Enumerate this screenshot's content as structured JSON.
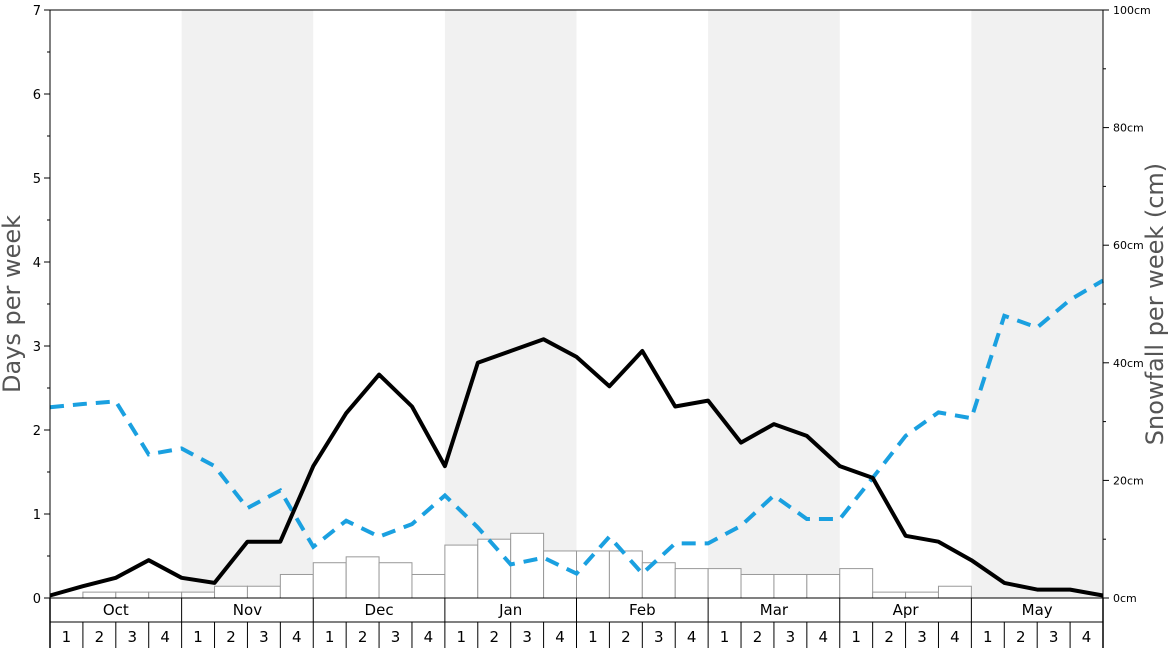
{
  "chart_data": {
    "type": "bar+line",
    "title": "",
    "y_left": {
      "label": "Days per week",
      "ylim": [
        0,
        7
      ],
      "ticks": [
        "0",
        "1",
        "2",
        "3",
        "4",
        "5",
        "6",
        "7"
      ]
    },
    "y_right": {
      "label": "Snowfall per week (cm)",
      "ylim": [
        0,
        100
      ],
      "ticks": [
        "0cm",
        "20cm",
        "40cm",
        "60cm",
        "80cm",
        "100cm"
      ]
    },
    "months": [
      "Oct",
      "Nov",
      "Dec",
      "Jan",
      "Feb",
      "Mar",
      "Apr",
      "May"
    ],
    "weeks": [
      "1",
      "2",
      "3",
      "4"
    ],
    "shaded_months": [
      "Nov",
      "Jan",
      "Mar",
      "May"
    ],
    "colors": {
      "bars_fill": "#ffffff",
      "bars_stroke": "#999999",
      "solid_line": "#000000",
      "dashed_line": "#1aa0e0",
      "shade": "#f1f1f1"
    },
    "bars_snowfall_cm": [
      0,
      1,
      1,
      1,
      1,
      2,
      2,
      4,
      6,
      7,
      6,
      4,
      9,
      10,
      11,
      8,
      8,
      8,
      6,
      5,
      5,
      4,
      4,
      4,
      5,
      1,
      1,
      2,
      0,
      0,
      0,
      0
    ],
    "solid_line_days": [
      0.03,
      0.14,
      0.24,
      0.45,
      0.24,
      0.18,
      0.67,
      0.67,
      1.57,
      2.2,
      2.66,
      2.28,
      1.57,
      2.8,
      2.94,
      3.08,
      2.87,
      2.52,
      2.94,
      2.28,
      2.35,
      1.85,
      2.07,
      1.93,
      1.57,
      1.43,
      0.74,
      0.67,
      0.45,
      0.18,
      0.1,
      0.1,
      0.03
    ],
    "dashed_line_days": [
      2.27,
      2.31,
      2.34,
      1.71,
      1.78,
      1.57,
      1.07,
      1.28,
      0.61,
      0.92,
      0.73,
      0.88,
      1.22,
      0.84,
      0.4,
      0.48,
      0.29,
      0.73,
      0.29,
      0.65,
      0.65,
      0.86,
      1.22,
      0.94,
      0.94,
      1.43,
      1.93,
      2.21,
      2.14,
      3.36,
      3.22,
      3.55,
      3.78
    ]
  }
}
